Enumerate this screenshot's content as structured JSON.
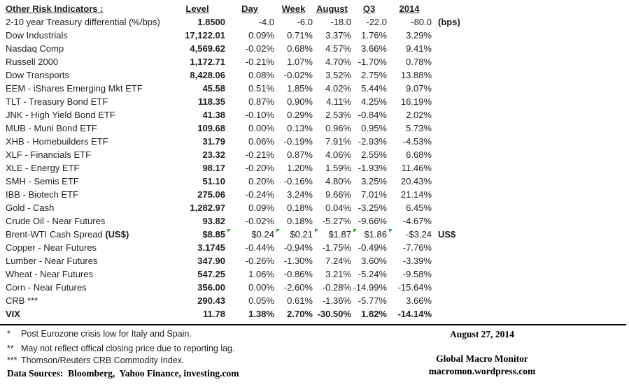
{
  "table": {
    "header": {
      "name": "Other Risk Indicators :",
      "level": "Level",
      "day": "Day",
      "week": "Week",
      "august": "August",
      "q3": "Q3",
      "y2014": "2014"
    },
    "rows": [
      {
        "name": "2-10 year Treasury differential (%/bps)",
        "level": "1.8500",
        "values": [
          "-4.0",
          "-6.0",
          "-18.0",
          "-22.0",
          "-80.0"
        ],
        "suffix": "(bps)"
      },
      {
        "name": "Dow Industrials",
        "level": "17,122.01",
        "values": [
          "0.09%",
          "0.71%",
          "3.37%",
          "1.76%",
          "3.29%"
        ]
      },
      {
        "name": "Nasdaq Comp",
        "level": "4,569.62",
        "values": [
          "-0.02%",
          "0.68%",
          "4.57%",
          "3.66%",
          "9.41%"
        ]
      },
      {
        "name": "Russell 2000",
        "level": "1,172.71",
        "values": [
          "-0.21%",
          "1.07%",
          "4.70%",
          "-1.70%",
          "0.78%"
        ]
      },
      {
        "name": "Dow Transports",
        "level": "8,428.06",
        "values": [
          "0.08%",
          "-0.02%",
          "3.52%",
          "2.75%",
          "13.88%"
        ]
      },
      {
        "name": "EEM - iShares Emerging Mkt ETF",
        "level": "45.58",
        "values": [
          "0.51%",
          "1.85%",
          "4.02%",
          "5.44%",
          "9.07%"
        ]
      },
      {
        "name": "TLT - Treasury Bond ETF",
        "level": "118.35",
        "values": [
          "0.87%",
          "0.90%",
          "4.11%",
          "4.25%",
          "16.19%"
        ]
      },
      {
        "name": "JNK - High Yield Bond ETF",
        "level": "41.38",
        "values": [
          "-0.10%",
          "0.29%",
          "2.53%",
          "-0.84%",
          "2.02%"
        ]
      },
      {
        "name": "MUB - Muni Bond ETF",
        "level": "109.68",
        "values": [
          "0.00%",
          "0.13%",
          "0.96%",
          "0.95%",
          "5.73%"
        ]
      },
      {
        "name": "XHB - Homebuilders ETF",
        "level": "31.79",
        "values": [
          "0.06%",
          "-0.19%",
          "7.91%",
          "-2.93%",
          "-4.53%"
        ]
      },
      {
        "name": "XLF - Financials ETF",
        "level": "23.32",
        "values": [
          "-0.21%",
          "0.87%",
          "4.06%",
          "2.55%",
          "6.68%"
        ]
      },
      {
        "name": "XLE - Energy ETF",
        "level": "98.17",
        "values": [
          "-0.20%",
          "1.20%",
          "1.59%",
          "-1.93%",
          "11.46%"
        ]
      },
      {
        "name": "SMH - Semis ETF",
        "level": "51.10",
        "values": [
          "0.20%",
          "-0.16%",
          "4.80%",
          "3.25%",
          "20.43%"
        ]
      },
      {
        "name": "IBB - Biotech ETF",
        "level": "275.06",
        "values": [
          "-0.24%",
          "3.24%",
          "9.66%",
          "7.01%",
          "21.14%"
        ]
      },
      {
        "name": "Gold - Cash",
        "level": "1,282.97",
        "values": [
          "0.09%",
          "0.18%",
          "0.04%",
          "-3.25%",
          "6.45%"
        ]
      },
      {
        "name": "Crude Oil - Near Futures",
        "level": "93.82",
        "values": [
          "-0.02%",
          "0.18%",
          "-5.27%",
          "-9.66%",
          "-4.67%"
        ]
      },
      {
        "name": "Brent-WTI Cash Spread (US$)",
        "name_bold": "(US$)",
        "level": "$8.85",
        "values": [
          "$0.24",
          "$0.21",
          "$1.87",
          "$1.86",
          "-$3.24"
        ],
        "suffix": "US$",
        "markers": true
      },
      {
        "name": "Copper - Near Futures",
        "level": "3.1745",
        "values": [
          "-0.44%",
          "-0.94%",
          "-1.75%",
          "-0.49%",
          "-7.76%"
        ]
      },
      {
        "name": "Lumber - Near Futures",
        "level": "347.90",
        "values": [
          "-0.26%",
          "-1.30%",
          "7.24%",
          "3.60%",
          "-3.39%"
        ]
      },
      {
        "name": "Wheat - Near Futures",
        "level": "547.25",
        "values": [
          "1.06%",
          "-0.86%",
          "3.21%",
          "-5.24%",
          "-9.58%"
        ]
      },
      {
        "name": "Corn - Near Futures",
        "level": "356.00",
        "values": [
          "0.00%",
          "-2.60%",
          "-0.28%",
          "-14.99%",
          "-15.64%"
        ]
      },
      {
        "name": "CRB ***",
        "level": "290.43",
        "values": [
          "0.05%",
          "0.61%",
          "-1.36%",
          "-5.77%",
          "3.66%"
        ]
      },
      {
        "name": "VIX",
        "level": "11.78",
        "values": [
          "1.38%",
          "2.70%",
          "-30.50%",
          "1.82%",
          "-14.14%"
        ],
        "bold": true
      }
    ]
  },
  "footnotes": [
    {
      "symbol": "*",
      "text": "Post Eurozone crisis low for Italy and Spain."
    },
    {
      "symbol": "**",
      "text": "May not reflect offical closing price due to reporting lag."
    },
    {
      "symbol": "***",
      "text": "Thomson/Reuters CRB Commodity Index."
    }
  ],
  "data_sources": "Data Sources:  Bloomberg,  Yahoo Finance, investing.com",
  "colophon": {
    "date": "August 27, 2014",
    "brand": "Global Macro Monitor",
    "site": "macromon.wordpress.com"
  },
  "colors": {
    "marker_green": "#3b9c3b",
    "text": "#1f1f1f",
    "rule": "#000000"
  }
}
